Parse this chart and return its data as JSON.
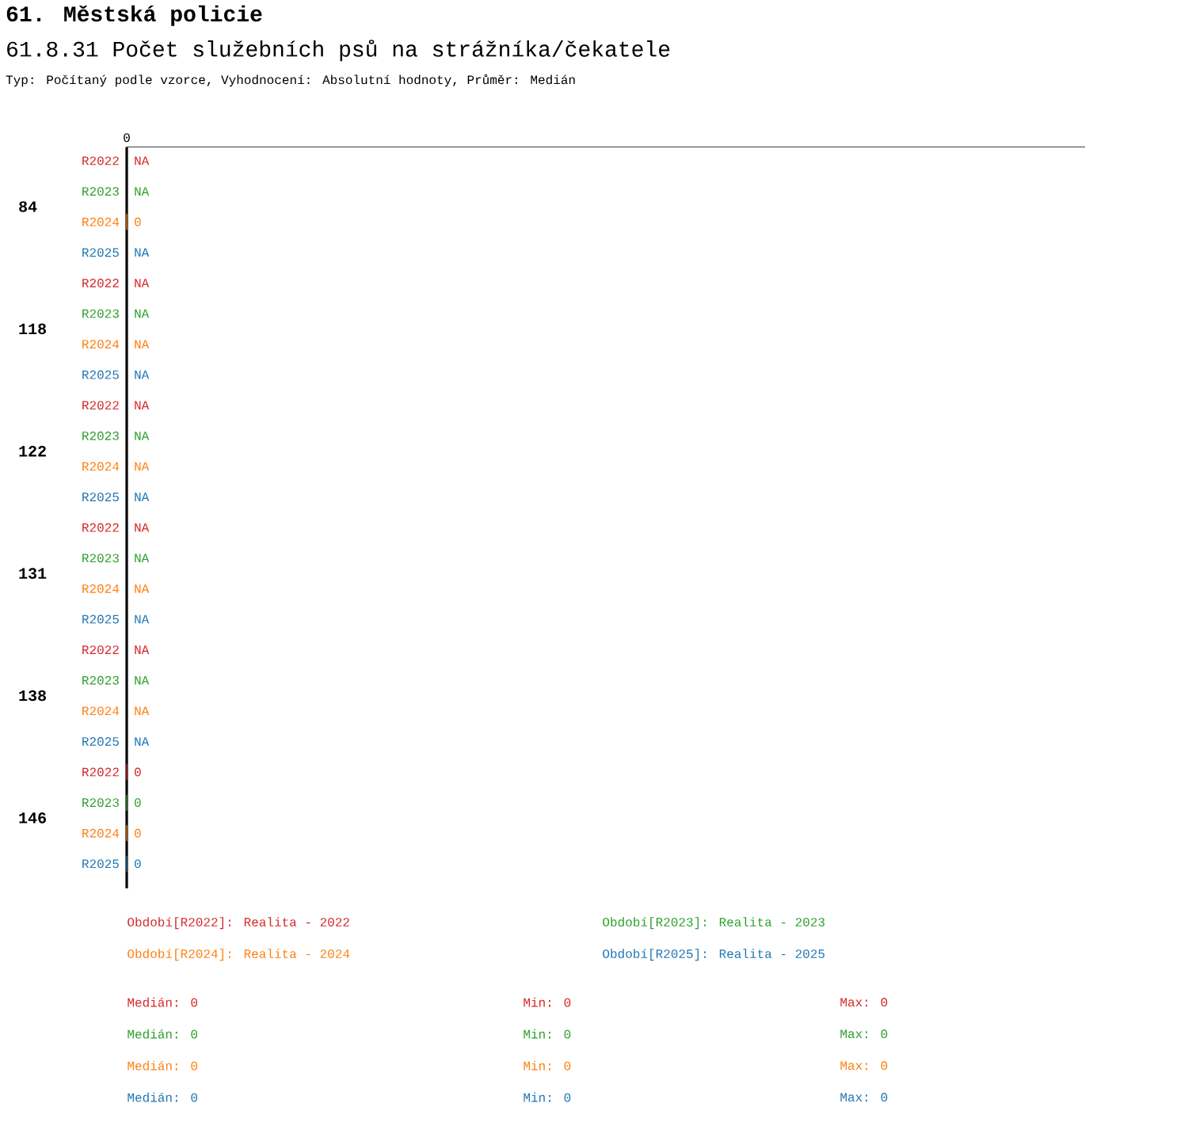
{
  "chart_data": {
    "type": "other",
    "title": "61. Městská policie",
    "subtitle": "61.8.31 Počet služebních psů na strážníka/čekatele",
    "categories": [
      "84",
      "118",
      "122",
      "131",
      "138",
      "146"
    ],
    "series": [
      {
        "name": "R2022",
        "color": "#d62728",
        "values": [
          null,
          null,
          null,
          null,
          null,
          0
        ],
        "value_labels": [
          "NA",
          "NA",
          "NA",
          "NA",
          "NA",
          "0"
        ]
      },
      {
        "name": "R2023",
        "color": "#2ca02c",
        "values": [
          null,
          null,
          null,
          null,
          null,
          0
        ],
        "value_labels": [
          "NA",
          "NA",
          "NA",
          "NA",
          "NA",
          "0"
        ]
      },
      {
        "name": "R2024",
        "color": "#ff7f0e",
        "values": [
          0,
          null,
          null,
          null,
          null,
          0
        ],
        "value_labels": [
          "0",
          "NA",
          "NA",
          "NA",
          "NA",
          "0"
        ]
      },
      {
        "name": "R2025",
        "color": "#1f77b4",
        "values": [
          null,
          null,
          null,
          null,
          null,
          0
        ],
        "value_labels": [
          "NA",
          "NA",
          "NA",
          "NA",
          "NA",
          "0"
        ]
      }
    ],
    "annotations": [
      "Typ: Počítaný podle vzorce, Vyhodnocení: Absolutní hodnoty, Průměr: Medián",
      "0",
      "Období[R2022]: Realita - 2022",
      "Období[R2023]: Realita - 2023",
      "Období[R2024]: Realita - 2024",
      "Období[R2025]: Realita - 2025",
      "Medián: 0",
      "Min: 0",
      "Max: 0",
      "Medián: 0",
      "Min: 0",
      "Max: 0",
      "Medián: 0",
      "Min: 0",
      "Max: 0",
      "Medián: 0",
      "Min: 0",
      "Max: 0"
    ]
  }
}
